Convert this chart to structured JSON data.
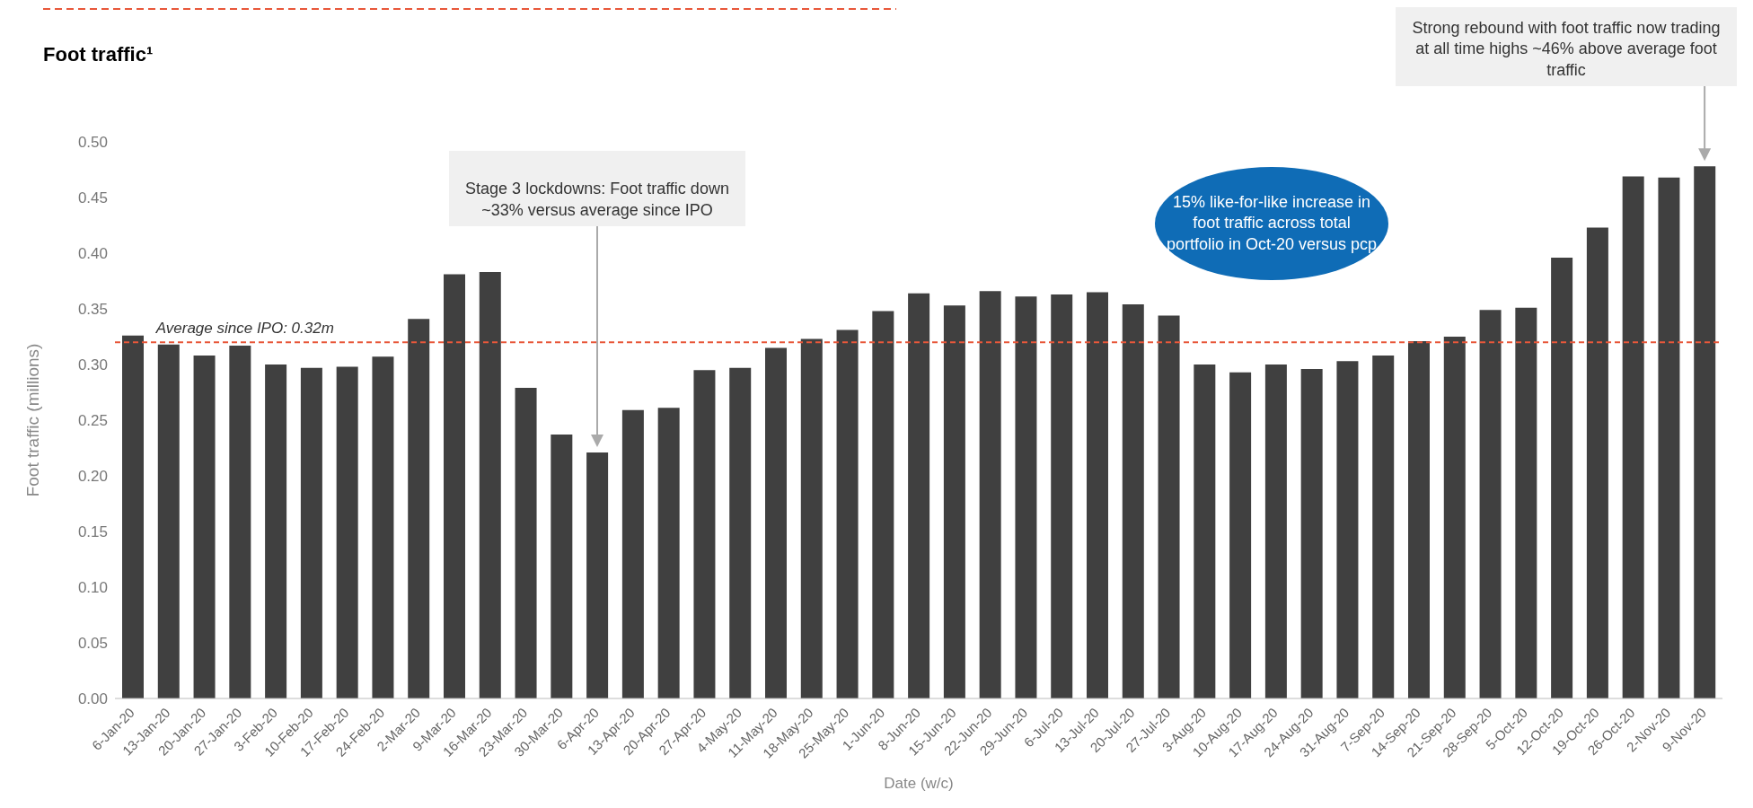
{
  "chart_data": {
    "type": "bar",
    "title": "Foot traffic¹",
    "xlabel": "Date (w/c)",
    "ylabel": "Foot traffic (millions)",
    "categories": [
      "6-Jan-20",
      "13-Jan-20",
      "20-Jan-20",
      "27-Jan-20",
      "3-Feb-20",
      "10-Feb-20",
      "17-Feb-20",
      "24-Feb-20",
      "2-Mar-20",
      "9-Mar-20",
      "16-Mar-20",
      "23-Mar-20",
      "30-Mar-20",
      "6-Apr-20",
      "13-Apr-20",
      "20-Apr-20",
      "27-Apr-20",
      "4-May-20",
      "11-May-20",
      "18-May-20",
      "25-May-20",
      "1-Jun-20",
      "8-Jun-20",
      "15-Jun-20",
      "22-Jun-20",
      "29-Jun-20",
      "6-Jul-20",
      "13-Jul-20",
      "20-Jul-20",
      "27-Jul-20",
      "3-Aug-20",
      "10-Aug-20",
      "17-Aug-20",
      "24-Aug-20",
      "31-Aug-20",
      "7-Sep-20",
      "14-Sep-20",
      "21-Sep-20",
      "28-Sep-20",
      "5-Oct-20",
      "12-Oct-20",
      "19-Oct-20",
      "26-Oct-20",
      "2-Nov-20",
      "9-Nov-20"
    ],
    "values": [
      0.326,
      0.318,
      0.308,
      0.317,
      0.3,
      0.297,
      0.298,
      0.307,
      0.341,
      0.381,
      0.383,
      0.279,
      0.237,
      0.221,
      0.259,
      0.261,
      0.295,
      0.297,
      0.315,
      0.323,
      0.331,
      0.348,
      0.364,
      0.353,
      0.366,
      0.361,
      0.363,
      0.365,
      0.354,
      0.344,
      0.3,
      0.293,
      0.3,
      0.296,
      0.303,
      0.308,
      0.321,
      0.325,
      0.349,
      0.351,
      0.396,
      0.423,
      0.469,
      0.468,
      0.478
    ],
    "color": "#404040",
    "ylim": [
      0,
      0.5
    ],
    "yticks": [
      {
        "value": 0,
        "label": "0.00"
      },
      {
        "value": 0.05,
        "label": "0.05"
      },
      {
        "value": 0.1,
        "label": "0.10"
      },
      {
        "value": 0.15,
        "label": "0.15"
      },
      {
        "value": 0.2,
        "label": "0.20"
      },
      {
        "value": 0.25,
        "label": "0.25"
      },
      {
        "value": 0.3,
        "label": "0.30"
      },
      {
        "value": 0.35,
        "label": "0.35"
      },
      {
        "value": 0.4,
        "label": "0.40"
      },
      {
        "value": 0.45,
        "label": "0.45"
      },
      {
        "value": 0.5,
        "label": "0.50"
      }
    ],
    "ref_lines": [
      {
        "axis": "y",
        "value": 0.32,
        "label": "Average since IPO: 0.32m",
        "color": "#e8573a",
        "line_style": "dashed"
      }
    ],
    "annotations": [
      "Stage 3 lockdowns: Foot traffic down ~33% versus average since IPO",
      "Strong rebound with foot traffic now trading at all time highs ~46% above average foot traffic",
      "15% like-for-like increase in foot traffic across total portfolio in Oct-20 versus pcp"
    ],
    "grid": false,
    "legend": false
  }
}
